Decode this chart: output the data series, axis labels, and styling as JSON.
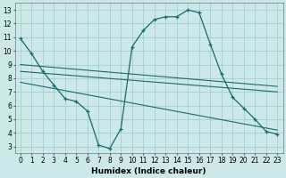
{
  "xlabel": "Humidex (Indice chaleur)",
  "bg_color": "#cce8e8",
  "line_color": "#1a6b6b",
  "grid_color": "#99cccc",
  "curve1_x": [
    0,
    1,
    2,
    3,
    4,
    5,
    6,
    7,
    8,
    9,
    10,
    11,
    12,
    13,
    14,
    15,
    16,
    17,
    18,
    19,
    20,
    21,
    22,
    23
  ],
  "curve1_y": [
    10.9,
    9.8,
    8.5,
    7.5,
    6.5,
    6.3,
    5.6,
    3.1,
    2.85,
    4.3,
    10.3,
    11.5,
    12.3,
    12.5,
    12.5,
    13.0,
    12.8,
    10.5,
    8.3,
    6.6,
    5.8,
    5.0,
    4.1,
    3.9
  ],
  "line2_x": [
    0,
    23
  ],
  "line2_y": [
    9.0,
    7.4
  ],
  "line3_x": [
    0,
    23
  ],
  "line3_y": [
    8.5,
    7.0
  ],
  "line4_x": [
    0,
    23
  ],
  "line4_y": [
    7.7,
    4.2
  ],
  "xlim": [
    -0.5,
    23.5
  ],
  "ylim": [
    2.5,
    13.5
  ],
  "xticks": [
    0,
    1,
    2,
    3,
    4,
    5,
    6,
    7,
    8,
    9,
    10,
    11,
    12,
    13,
    14,
    15,
    16,
    17,
    18,
    19,
    20,
    21,
    22,
    23
  ],
  "yticks": [
    3,
    4,
    5,
    6,
    7,
    8,
    9,
    10,
    11,
    12,
    13
  ],
  "xtick_labels": [
    "0",
    "1",
    "2",
    "3",
    "4",
    "5",
    "6",
    "7",
    "8",
    "9",
    "10",
    "11",
    "12",
    "13",
    "14",
    "15",
    "16",
    "17",
    "18",
    "19",
    "20",
    "21",
    "22",
    "23"
  ],
  "ytick_labels": [
    "3",
    "4",
    "5",
    "6",
    "7",
    "8",
    "9",
    "10",
    "11",
    "12",
    "13"
  ],
  "tick_fontsize": 5.5,
  "xlabel_fontsize": 6.5
}
